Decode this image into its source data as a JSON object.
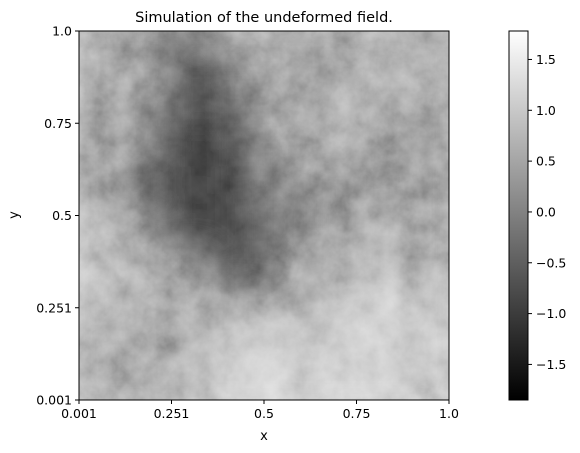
{
  "chart_data": {
    "type": "heatmap",
    "title": "Simulation of the undeformed field.",
    "xlabel": "x",
    "ylabel": "y",
    "x_ticks": [
      "0.001",
      "0.251",
      "0.5",
      "0.75",
      "1.0"
    ],
    "y_ticks": [
      "0.001",
      "0.251",
      "0.5",
      "0.75",
      "1.0"
    ],
    "xlim": [
      0.001,
      1.0
    ],
    "ylim": [
      0.001,
      1.0
    ],
    "colormap": "gray",
    "colorbar": {
      "range": [
        -1.85,
        1.78
      ],
      "ticks": [
        "−1.5",
        "−1.0",
        "−0.5",
        "0.0",
        "0.5",
        "1.0",
        "1.5"
      ],
      "tick_values": [
        -1.5,
        -1.0,
        -0.5,
        0.0,
        0.5,
        1.0,
        1.5
      ]
    },
    "field_grid": [
      [
        0.2,
        0.0,
        -0.3,
        -0.4,
        0.0,
        0.3,
        0.2,
        0.0,
        0.3,
        0.2
      ],
      [
        0.4,
        0.2,
        -0.2,
        -1.0,
        -0.4,
        0.1,
        0.0,
        0.2,
        0.4,
        0.4
      ],
      [
        0.1,
        0.0,
        -0.4,
        -1.0,
        -0.6,
        0.0,
        0.2,
        0.5,
        0.3,
        0.0
      ],
      [
        0.0,
        0.1,
        -0.5,
        -1.3,
        -0.8,
        -0.2,
        0.1,
        0.2,
        -0.1,
        0.1
      ],
      [
        0.2,
        -0.3,
        -0.8,
        -1.1,
        -0.9,
        -0.3,
        -0.2,
        -0.1,
        -0.2,
        -0.1
      ],
      [
        0.5,
        0.3,
        -0.5,
        -1.2,
        -1.0,
        -0.5,
        -0.3,
        0.0,
        0.3,
        0.1
      ],
      [
        0.8,
        0.4,
        0.0,
        -0.3,
        -0.9,
        -0.5,
        0.1,
        0.3,
        0.5,
        0.2
      ],
      [
        0.6,
        0.5,
        0.3,
        0.1,
        -0.3,
        -0.2,
        0.2,
        0.7,
        0.9,
        0.6
      ],
      [
        0.4,
        0.3,
        0.2,
        0.3,
        0.8,
        0.9,
        0.6,
        0.9,
        1.0,
        0.8
      ],
      [
        0.3,
        0.1,
        0.3,
        0.5,
        0.9,
        1.1,
        0.8,
        1.0,
        0.9,
        0.7
      ]
    ]
  }
}
